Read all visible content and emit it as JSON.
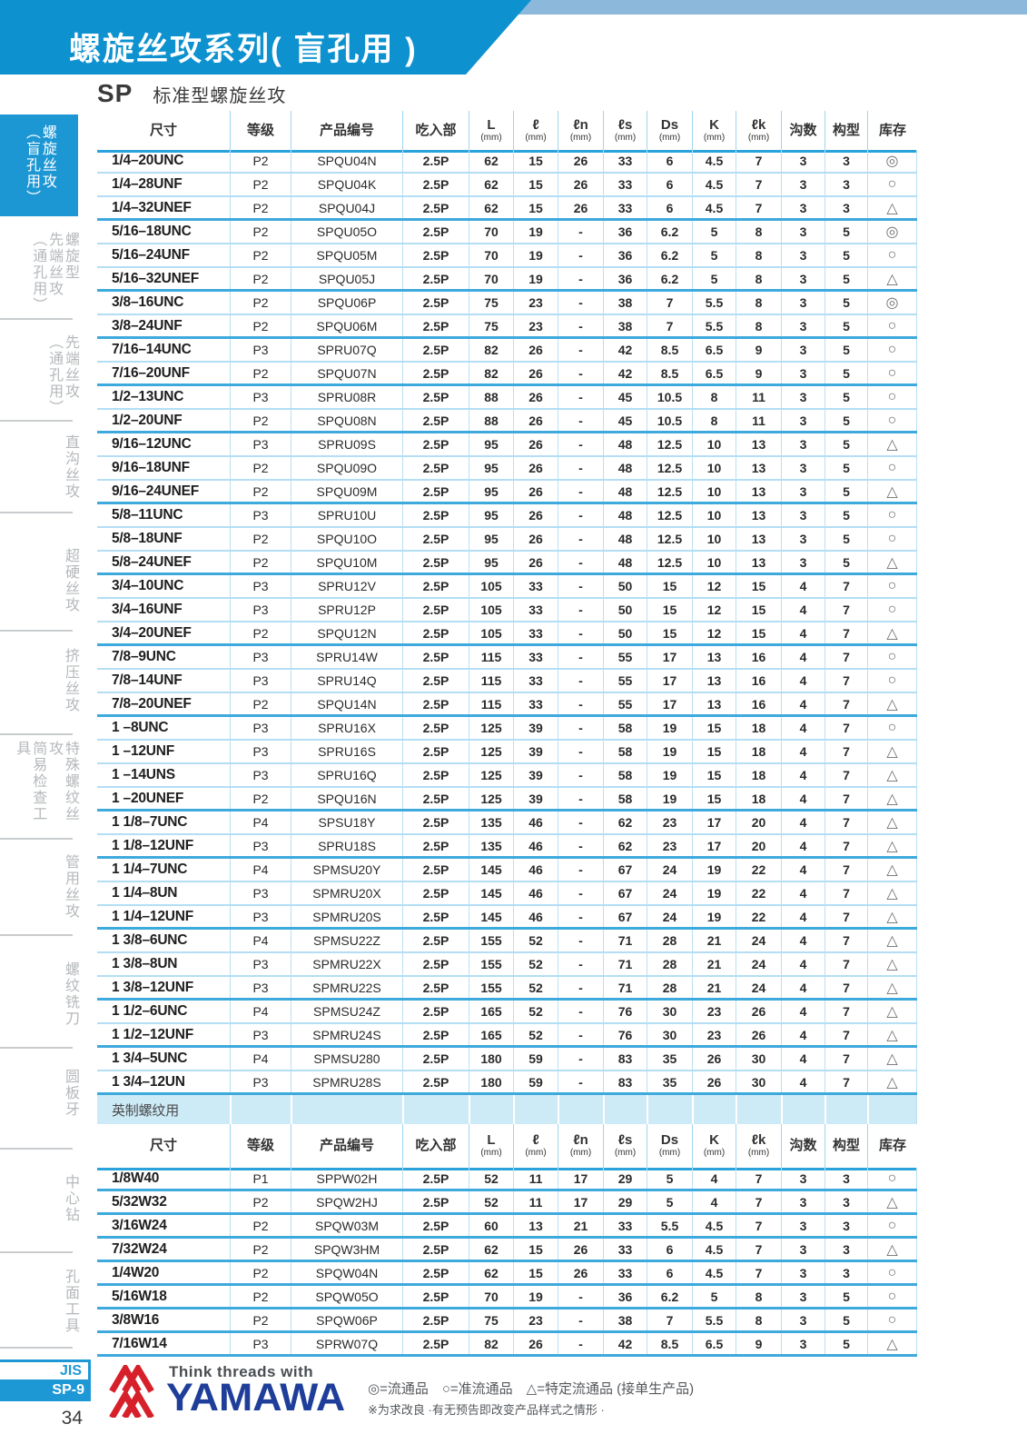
{
  "page": {
    "title": "螺旋丝攻系列( 盲孔用 )",
    "series_code": "SP",
    "series_name": "标准型螺旋丝攻",
    "standard_label": "JIS",
    "page_code": "SP-9",
    "page_number": "34"
  },
  "colors": {
    "banner_blue": "#0e92cf",
    "strip_blue": "#8cb8dc",
    "tab_blue": "#1c97d4",
    "table_line_light": "#b3def4",
    "table_line_dark": "#3ea9dd",
    "section_band_bg": "#cdeaf7",
    "brand_blue": "#1f3e99",
    "logo_red": "#d6202a"
  },
  "sidebar": {
    "items": [
      {
        "label": "螺旋丝攻（盲孔用）",
        "lines": "螺旋丝攻\n（盲孔用）",
        "active": true
      },
      {
        "label": "螺旋型先端丝攻（通孔用）",
        "lines": "螺旋型\n先端丝攻\n（通孔用）",
        "active": false
      },
      {
        "label": "先端丝攻（通孔用）",
        "lines": "先端丝攻\n（通孔用）",
        "active": false
      },
      {
        "label": "直沟丝攻",
        "lines": "直沟丝攻",
        "active": false
      },
      {
        "label": "超硬丝攻",
        "lines": "超硬丝攻",
        "active": false
      },
      {
        "label": "挤压丝攻",
        "lines": "挤压丝攻",
        "active": false
      },
      {
        "label": "特殊螺纹丝攻简易检查工具",
        "lines": "特殊螺纹丝攻\n简易检查工具",
        "active": false
      },
      {
        "label": "管用丝攻",
        "lines": "管用丝攻",
        "active": false
      },
      {
        "label": "螺纹铣刀",
        "lines": "螺纹铣刀",
        "active": false
      },
      {
        "label": "圆板牙",
        "lines": "圆板牙",
        "active": false
      },
      {
        "label": "中心钻",
        "lines": "中心钻",
        "active": false
      },
      {
        "label": "孔面工具",
        "lines": "孔面工具",
        "active": false
      }
    ]
  },
  "table": {
    "headers": [
      {
        "l": "尺寸",
        "u": ""
      },
      {
        "l": "等级",
        "u": ""
      },
      {
        "l": "产品编号",
        "u": ""
      },
      {
        "l": "吃入部",
        "u": ""
      },
      {
        "l": "L",
        "u": "(mm)"
      },
      {
        "l": "ℓ",
        "u": "(mm)"
      },
      {
        "l": "ℓn",
        "u": "(mm)"
      },
      {
        "l": "ℓs",
        "u": "(mm)"
      },
      {
        "l": "Ds",
        "u": "(mm)"
      },
      {
        "l": "K",
        "u": "(mm)"
      },
      {
        "l": "ℓk",
        "u": "(mm)"
      },
      {
        "l": "沟数",
        "u": ""
      },
      {
        "l": "构型",
        "u": ""
      },
      {
        "l": "库存",
        "u": ""
      }
    ],
    "rows_unified": [
      {
        "c": [
          "1/4–20UNC",
          "P2",
          "SPQU04N",
          "2.5P",
          "62",
          "15",
          "26",
          "33",
          "6",
          "4.5",
          "7",
          "3",
          "3",
          "◎"
        ],
        "g": false
      },
      {
        "c": [
          "1/4–28UNF",
          "P2",
          "SPQU04K",
          "2.5P",
          "62",
          "15",
          "26",
          "33",
          "6",
          "4.5",
          "7",
          "3",
          "3",
          "○"
        ],
        "g": false
      },
      {
        "c": [
          "1/4–32UNEF",
          "P2",
          "SPQU04J",
          "2.5P",
          "62",
          "15",
          "26",
          "33",
          "6",
          "4.5",
          "7",
          "3",
          "3",
          "△"
        ],
        "g": true
      },
      {
        "c": [
          "5/16–18UNC",
          "P2",
          "SPQU05O",
          "2.5P",
          "70",
          "19",
          "-",
          "36",
          "6.2",
          "5",
          "8",
          "3",
          "5",
          "◎"
        ],
        "g": false
      },
      {
        "c": [
          "5/16–24UNF",
          "P2",
          "SPQU05M",
          "2.5P",
          "70",
          "19",
          "-",
          "36",
          "6.2",
          "5",
          "8",
          "3",
          "5",
          "○"
        ],
        "g": false
      },
      {
        "c": [
          "5/16–32UNEF",
          "P2",
          "SPQU05J",
          "2.5P",
          "70",
          "19",
          "-",
          "36",
          "6.2",
          "5",
          "8",
          "3",
          "5",
          "△"
        ],
        "g": true
      },
      {
        "c": [
          "3/8–16UNC",
          "P2",
          "SPQU06P",
          "2.5P",
          "75",
          "23",
          "-",
          "38",
          "7",
          "5.5",
          "8",
          "3",
          "5",
          "◎"
        ],
        "g": false
      },
      {
        "c": [
          "3/8–24UNF",
          "P2",
          "SPQU06M",
          "2.5P",
          "75",
          "23",
          "-",
          "38",
          "7",
          "5.5",
          "8",
          "3",
          "5",
          "○"
        ],
        "g": true
      },
      {
        "c": [
          "7/16–14UNC",
          "P3",
          "SPRU07Q",
          "2.5P",
          "82",
          "26",
          "-",
          "42",
          "8.5",
          "6.5",
          "9",
          "3",
          "5",
          "○"
        ],
        "g": false
      },
      {
        "c": [
          "7/16–20UNF",
          "P2",
          "SPQU07N",
          "2.5P",
          "82",
          "26",
          "-",
          "42",
          "8.5",
          "6.5",
          "9",
          "3",
          "5",
          "○"
        ],
        "g": true
      },
      {
        "c": [
          "1/2–13UNC",
          "P3",
          "SPRU08R",
          "2.5P",
          "88",
          "26",
          "-",
          "45",
          "10.5",
          "8",
          "11",
          "3",
          "5",
          "○"
        ],
        "g": false
      },
      {
        "c": [
          "1/2–20UNF",
          "P2",
          "SPQU08N",
          "2.5P",
          "88",
          "26",
          "-",
          "45",
          "10.5",
          "8",
          "11",
          "3",
          "5",
          "○"
        ],
        "g": true
      },
      {
        "c": [
          "9/16–12UNC",
          "P3",
          "SPRU09S",
          "2.5P",
          "95",
          "26",
          "-",
          "48",
          "12.5",
          "10",
          "13",
          "3",
          "5",
          "△"
        ],
        "g": false
      },
      {
        "c": [
          "9/16–18UNF",
          "P2",
          "SPQU09O",
          "2.5P",
          "95",
          "26",
          "-",
          "48",
          "12.5",
          "10",
          "13",
          "3",
          "5",
          "○"
        ],
        "g": false
      },
      {
        "c": [
          "9/16–24UNEF",
          "P2",
          "SPQU09M",
          "2.5P",
          "95",
          "26",
          "-",
          "48",
          "12.5",
          "10",
          "13",
          "3",
          "5",
          "△"
        ],
        "g": true
      },
      {
        "c": [
          "5/8–11UNC",
          "P3",
          "SPRU10U",
          "2.5P",
          "95",
          "26",
          "-",
          "48",
          "12.5",
          "10",
          "13",
          "3",
          "5",
          "○"
        ],
        "g": false
      },
      {
        "c": [
          "5/8–18UNF",
          "P2",
          "SPQU10O",
          "2.5P",
          "95",
          "26",
          "-",
          "48",
          "12.5",
          "10",
          "13",
          "3",
          "5",
          "○"
        ],
        "g": false
      },
      {
        "c": [
          "5/8–24UNEF",
          "P2",
          "SPQU10M",
          "2.5P",
          "95",
          "26",
          "-",
          "48",
          "12.5",
          "10",
          "13",
          "3",
          "5",
          "△"
        ],
        "g": true
      },
      {
        "c": [
          "3/4–10UNC",
          "P3",
          "SPRU12V",
          "2.5P",
          "105",
          "33",
          "-",
          "50",
          "15",
          "12",
          "15",
          "4",
          "7",
          "○"
        ],
        "g": false
      },
      {
        "c": [
          "3/4–16UNF",
          "P3",
          "SPRU12P",
          "2.5P",
          "105",
          "33",
          "-",
          "50",
          "15",
          "12",
          "15",
          "4",
          "7",
          "○"
        ],
        "g": false
      },
      {
        "c": [
          "3/4–20UNEF",
          "P2",
          "SPQU12N",
          "2.5P",
          "105",
          "33",
          "-",
          "50",
          "15",
          "12",
          "15",
          "4",
          "7",
          "△"
        ],
        "g": true
      },
      {
        "c": [
          "7/8–9UNC",
          "P3",
          "SPRU14W",
          "2.5P",
          "115",
          "33",
          "-",
          "55",
          "17",
          "13",
          "16",
          "4",
          "7",
          "○"
        ],
        "g": false
      },
      {
        "c": [
          "7/8–14UNF",
          "P3",
          "SPRU14Q",
          "2.5P",
          "115",
          "33",
          "-",
          "55",
          "17",
          "13",
          "16",
          "4",
          "7",
          "○"
        ],
        "g": false
      },
      {
        "c": [
          "7/8–20UNEF",
          "P2",
          "SPQU14N",
          "2.5P",
          "115",
          "33",
          "-",
          "55",
          "17",
          "13",
          "16",
          "4",
          "7",
          "△"
        ],
        "g": true
      },
      {
        "c": [
          "1 –8UNC",
          "P3",
          "SPRU16X",
          "2.5P",
          "125",
          "39",
          "-",
          "58",
          "19",
          "15",
          "18",
          "4",
          "7",
          "○"
        ],
        "g": false
      },
      {
        "c": [
          "1 –12UNF",
          "P3",
          "SPRU16S",
          "2.5P",
          "125",
          "39",
          "-",
          "58",
          "19",
          "15",
          "18",
          "4",
          "7",
          "△"
        ],
        "g": false
      },
      {
        "c": [
          "1 –14UNS",
          "P3",
          "SPRU16Q",
          "2.5P",
          "125",
          "39",
          "-",
          "58",
          "19",
          "15",
          "18",
          "4",
          "7",
          "△"
        ],
        "g": false
      },
      {
        "c": [
          "1 –20UNEF",
          "P2",
          "SPQU16N",
          "2.5P",
          "125",
          "39",
          "-",
          "58",
          "19",
          "15",
          "18",
          "4",
          "7",
          "△"
        ],
        "g": true
      },
      {
        "c": [
          "1 1/8–7UNC",
          "P4",
          "SPSU18Y",
          "2.5P",
          "135",
          "46",
          "-",
          "62",
          "23",
          "17",
          "20",
          "4",
          "7",
          "△"
        ],
        "g": false
      },
      {
        "c": [
          "1 1/8–12UNF",
          "P3",
          "SPRU18S",
          "2.5P",
          "135",
          "46",
          "-",
          "62",
          "23",
          "17",
          "20",
          "4",
          "7",
          "△"
        ],
        "g": true
      },
      {
        "c": [
          "1 1/4–7UNC",
          "P4",
          "SPMSU20Y",
          "2.5P",
          "145",
          "46",
          "-",
          "67",
          "24",
          "19",
          "22",
          "4",
          "7",
          "△"
        ],
        "g": false
      },
      {
        "c": [
          "1 1/4–8UN",
          "P3",
          "SPMRU20X",
          "2.5P",
          "145",
          "46",
          "-",
          "67",
          "24",
          "19",
          "22",
          "4",
          "7",
          "△"
        ],
        "g": false
      },
      {
        "c": [
          "1 1/4–12UNF",
          "P3",
          "SPMRU20S",
          "2.5P",
          "145",
          "46",
          "-",
          "67",
          "24",
          "19",
          "22",
          "4",
          "7",
          "△"
        ],
        "g": true
      },
      {
        "c": [
          "1 3/8–6UNC",
          "P4",
          "SPMSU22Z",
          "2.5P",
          "155",
          "52",
          "-",
          "71",
          "28",
          "21",
          "24",
          "4",
          "7",
          "△"
        ],
        "g": false
      },
      {
        "c": [
          "1 3/8–8UN",
          "P3",
          "SPMRU22X",
          "2.5P",
          "155",
          "52",
          "-",
          "71",
          "28",
          "21",
          "24",
          "4",
          "7",
          "△"
        ],
        "g": false
      },
      {
        "c": [
          "1 3/8–12UNF",
          "P3",
          "SPMRU22S",
          "2.5P",
          "155",
          "52",
          "-",
          "71",
          "28",
          "21",
          "24",
          "4",
          "7",
          "△"
        ],
        "g": true
      },
      {
        "c": [
          "1 1/2–6UNC",
          "P4",
          "SPMSU24Z",
          "2.5P",
          "165",
          "52",
          "-",
          "76",
          "30",
          "23",
          "26",
          "4",
          "7",
          "△"
        ],
        "g": false
      },
      {
        "c": [
          "1 1/2–12UNF",
          "P3",
          "SPMRU24S",
          "2.5P",
          "165",
          "52",
          "-",
          "76",
          "30",
          "23",
          "26",
          "4",
          "7",
          "△"
        ],
        "g": true
      },
      {
        "c": [
          "1 3/4–5UNC",
          "P4",
          "SPMSU280",
          "2.5P",
          "180",
          "59",
          "-",
          "83",
          "35",
          "26",
          "30",
          "4",
          "7",
          "△"
        ],
        "g": false
      },
      {
        "c": [
          "1 3/4–12UN",
          "P3",
          "SPMRU28S",
          "2.5P",
          "180",
          "59",
          "-",
          "83",
          "35",
          "26",
          "30",
          "4",
          "7",
          "△"
        ],
        "g": true
      }
    ],
    "section_label": "英制螺纹用",
    "rows_whitworth": [
      {
        "c": [
          "1/8W40",
          "P1",
          "SPPW02H",
          "2.5P",
          "52",
          "11",
          "17",
          "29",
          "5",
          "4",
          "7",
          "3",
          "3",
          "○"
        ],
        "g": true
      },
      {
        "c": [
          "5/32W32",
          "P2",
          "SPQW2HJ",
          "2.5P",
          "52",
          "11",
          "17",
          "29",
          "5",
          "4",
          "7",
          "3",
          "3",
          "△"
        ],
        "g": true
      },
      {
        "c": [
          "3/16W24",
          "P2",
          "SPQW03M",
          "2.5P",
          "60",
          "13",
          "21",
          "33",
          "5.5",
          "4.5",
          "7",
          "3",
          "3",
          "○"
        ],
        "g": true
      },
      {
        "c": [
          "7/32W24",
          "P2",
          "SPQW3HM",
          "2.5P",
          "62",
          "15",
          "26",
          "33",
          "6",
          "4.5",
          "7",
          "3",
          "3",
          "△"
        ],
        "g": true
      },
      {
        "c": [
          "1/4W20",
          "P2",
          "SPQW04N",
          "2.5P",
          "62",
          "15",
          "26",
          "33",
          "6",
          "4.5",
          "7",
          "3",
          "3",
          "○"
        ],
        "g": true
      },
      {
        "c": [
          "5/16W18",
          "P2",
          "SPQW05O",
          "2.5P",
          "70",
          "19",
          "-",
          "36",
          "6.2",
          "5",
          "8",
          "3",
          "5",
          "○"
        ],
        "g": true
      },
      {
        "c": [
          "3/8W16",
          "P2",
          "SPQW06P",
          "2.5P",
          "75",
          "23",
          "-",
          "38",
          "7",
          "5.5",
          "8",
          "3",
          "5",
          "○"
        ],
        "g": true
      },
      {
        "c": [
          "7/16W14",
          "P3",
          "SPRW07Q",
          "2.5P",
          "82",
          "26",
          "-",
          "42",
          "8.5",
          "6.5",
          "9",
          "3",
          "5",
          "△"
        ],
        "g": true
      }
    ]
  },
  "footer": {
    "tagline": "Think threads with",
    "brand": "YAMAWA",
    "legend": "◎=流通品　○=准流通品　△=特定流通品 (接单生产品)",
    "note": "※为求改良 ·有无预告即改变产品样式之情形 ·"
  }
}
